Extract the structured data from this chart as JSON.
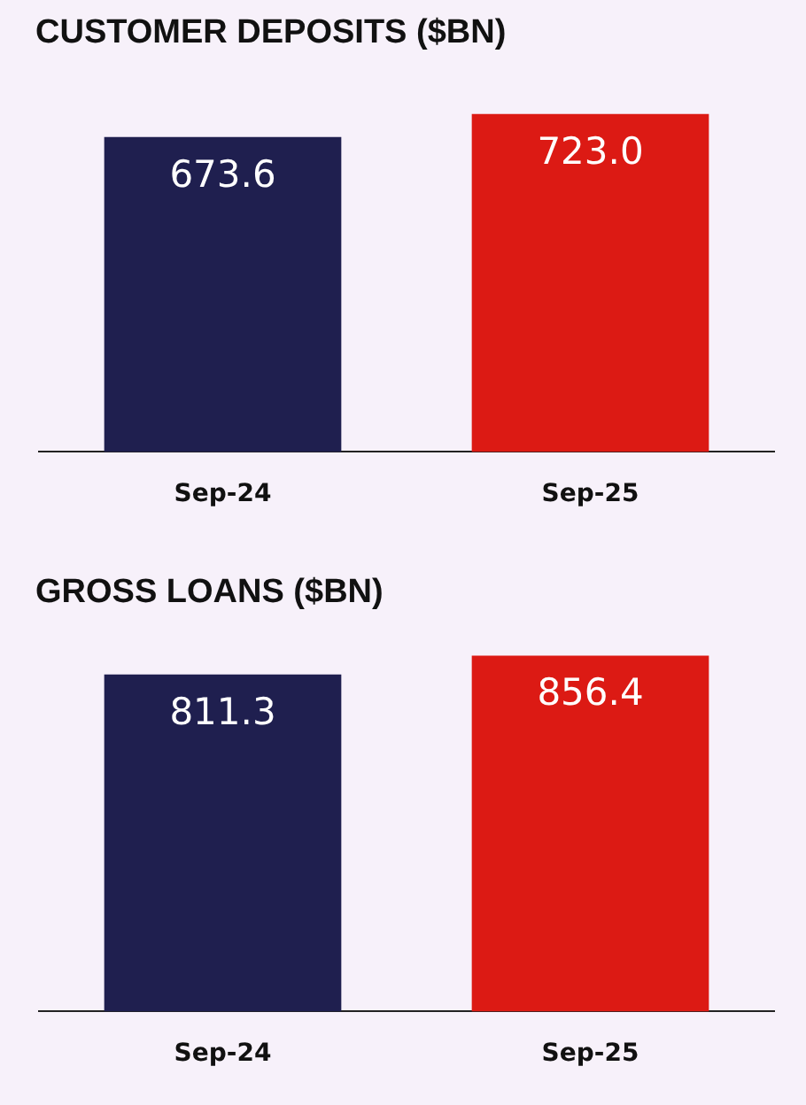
{
  "chart_data": [
    {
      "type": "bar",
      "title": "CUSTOMER DEPOSITS ($BN)",
      "categories": [
        "Sep-24",
        "Sep-25"
      ],
      "values": [
        673.6,
        723.0
      ],
      "value_labels": [
        "673.6",
        "723.0"
      ],
      "colors": [
        "#1f1f4f",
        "#dc1a14"
      ],
      "tick_labels": "x",
      "grid": false,
      "legend": false
    },
    {
      "type": "bar",
      "title": "GROSS LOANS ($BN)",
      "categories": [
        "Sep-24",
        "Sep-25"
      ],
      "values": [
        811.3,
        856.4
      ],
      "value_labels": [
        "811.3",
        "856.4"
      ],
      "colors": [
        "#1f1f4f",
        "#dc1a14"
      ],
      "tick_labels": "x",
      "grid": false,
      "legend": false
    }
  ]
}
